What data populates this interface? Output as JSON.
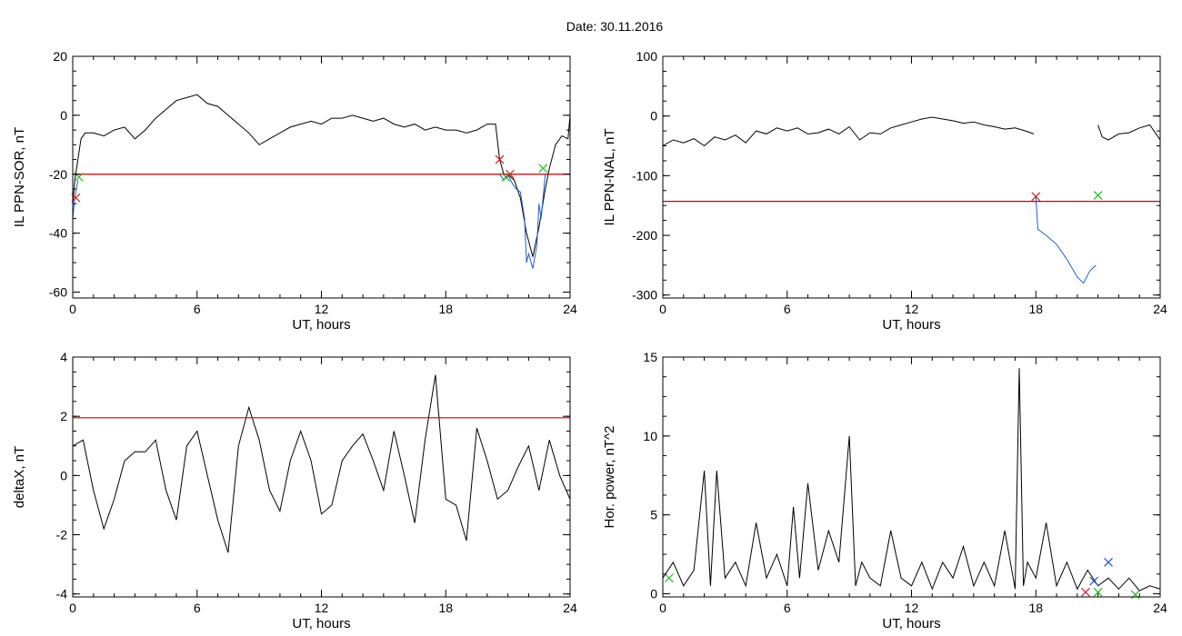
{
  "figure": {
    "title": "Date:  30.11.2016"
  },
  "colors": {
    "trace": "#000000",
    "threshold": "#cc0000",
    "segment": "#1f5fd0",
    "marker_red": "#cc2222",
    "marker_green": "#22bb22",
    "marker_blue": "#2255dd"
  },
  "chart_data": [
    {
      "id": "sor",
      "type": "line",
      "ylabel": "IL PPN-SOR, nT",
      "xlabel": "UT, hours",
      "xlim": [
        0,
        24
      ],
      "ylim": [
        -62,
        20
      ],
      "xticks": [
        0,
        6,
        12,
        18,
        24
      ],
      "yticks": [
        -60,
        -40,
        -20,
        0,
        20
      ],
      "threshold": -20,
      "series": [
        {
          "color": "#000000",
          "x": [
            0,
            0.1,
            0.25,
            0.4,
            0.6,
            1,
            1.5,
            2,
            2.5,
            3,
            3.5,
            4,
            4.5,
            5,
            5.5,
            6,
            6.5,
            7,
            7.5,
            8,
            8.5,
            9,
            9.5,
            10,
            10.5,
            11,
            11.5,
            12,
            12.5,
            13,
            13.5,
            14,
            14.5,
            15,
            15.5,
            16,
            16.5,
            17,
            17.5,
            18,
            18.5,
            19,
            19.5,
            20,
            20.4,
            20.6,
            20.8,
            21,
            21.3,
            21.6,
            21.9,
            22.2,
            22.5,
            22.8,
            23,
            23.3,
            23.6,
            23.9,
            24
          ],
          "y": [
            -30,
            -22,
            -15,
            -8,
            -6,
            -6,
            -7,
            -5,
            -4,
            -8,
            -5,
            -1,
            2,
            5,
            6,
            7,
            4,
            3,
            0,
            -3,
            -6,
            -10,
            -8,
            -6,
            -4,
            -3,
            -2,
            -3,
            -1,
            -1,
            0,
            -1,
            -2,
            -1,
            -3,
            -4,
            -3,
            -5,
            -4,
            -5,
            -5,
            -6,
            -5,
            -3,
            -3,
            -15,
            -20,
            -20,
            -22,
            -28,
            -40,
            -48,
            -38,
            -25,
            -18,
            -10,
            -7,
            -8,
            0
          ]
        },
        {
          "color": "#1f5fd0",
          "x": [
            0,
            0.1,
            0.25
          ],
          "y": [
            -35,
            -28,
            -22
          ]
        },
        {
          "color": "#1f5fd0",
          "x": [
            20.6,
            20.8,
            21,
            21.2,
            21.4,
            21.6,
            21.8,
            21.9,
            22,
            22.2,
            22.4,
            22.5,
            22.6,
            22.8
          ],
          "y": [
            -20,
            -22,
            -20,
            -23,
            -25,
            -26,
            -35,
            -50,
            -47,
            -52,
            -44,
            -30,
            -35,
            -20
          ]
        }
      ],
      "markers": [
        {
          "x": 0.15,
          "y": -28,
          "color": "#cc2222"
        },
        {
          "x": 0.3,
          "y": -21,
          "color": "#22bb22"
        },
        {
          "x": 20.6,
          "y": -15,
          "color": "#cc2222"
        },
        {
          "x": 20.9,
          "y": -21,
          "color": "#22bb22"
        },
        {
          "x": 21.1,
          "y": -20,
          "color": "#cc2222"
        },
        {
          "x": 22.7,
          "y": -18,
          "color": "#22bb22"
        }
      ]
    },
    {
      "id": "nal",
      "type": "line",
      "ylabel": "IL PPN-NAL, nT",
      "xlabel": "UT, hours",
      "xlim": [
        0,
        24
      ],
      "ylim": [
        -305,
        100
      ],
      "xticks": [
        0,
        6,
        12,
        18,
        24
      ],
      "yticks": [
        -300,
        -200,
        -100,
        0,
        100
      ],
      "threshold": -143,
      "series": [
        {
          "color": "#000000",
          "x": [
            0,
            0.5,
            1,
            1.5,
            2,
            2.5,
            3,
            3.5,
            4,
            4.5,
            5,
            5.5,
            6,
            6.5,
            7,
            7.5,
            8,
            8.5,
            9,
            9.5,
            10,
            10.5,
            11,
            11.5,
            12,
            12.5,
            13,
            13.5,
            14,
            14.5,
            15,
            15.5,
            16,
            16.5,
            17,
            17.5,
            17.9
          ],
          "y": [
            -50,
            -40,
            -45,
            -38,
            -50,
            -35,
            -40,
            -32,
            -45,
            -25,
            -30,
            -20,
            -25,
            -20,
            -30,
            -28,
            -22,
            -30,
            -18,
            -40,
            -28,
            -30,
            -20,
            -15,
            -10,
            -5,
            -2,
            -5,
            -8,
            -12,
            -10,
            -15,
            -18,
            -22,
            -20,
            -25,
            -30
          ]
        },
        {
          "color": "#1f5fd0",
          "x": [
            18,
            18.1,
            18.5,
            19,
            19.5,
            20,
            20.3,
            20.6,
            20.9
          ],
          "y": [
            -135,
            -190,
            -200,
            -215,
            -240,
            -270,
            -280,
            -260,
            -250
          ]
        },
        {
          "color": "#000000",
          "x": [
            21,
            21.2,
            21.5,
            22,
            22.5,
            23,
            23.5,
            24
          ],
          "y": [
            -15,
            -35,
            -40,
            -30,
            -28,
            -20,
            -15,
            -40
          ]
        }
      ],
      "markers": [
        {
          "x": 18,
          "y": -135,
          "color": "#cc2222"
        },
        {
          "x": 21,
          "y": -133,
          "color": "#22bb22"
        }
      ]
    },
    {
      "id": "deltax",
      "type": "line",
      "ylabel": "deltaX, nT",
      "xlabel": "UT, hours",
      "xlim": [
        0,
        24
      ],
      "ylim": [
        -4.1,
        4
      ],
      "xticks": [
        0,
        6,
        12,
        18,
        24
      ],
      "yticks": [
        -4,
        -2,
        0,
        2,
        4
      ],
      "threshold": 1.95,
      "series": [
        {
          "color": "#000000",
          "x": [
            0,
            0.5,
            1,
            1.5,
            2,
            2.5,
            3,
            3.5,
            4,
            4.5,
            5,
            5.5,
            6,
            6.5,
            7,
            7.5,
            8,
            8.5,
            9,
            9.5,
            10,
            10.5,
            11,
            11.5,
            12,
            12.5,
            13,
            13.5,
            14,
            14.5,
            15,
            15.5,
            16,
            16.5,
            17,
            17.5,
            18,
            18.5,
            19,
            19.5,
            20,
            20.5,
            21,
            21.5,
            22,
            22.5,
            23,
            23.5,
            24
          ],
          "y": [
            1,
            1.2,
            -0.5,
            -1.8,
            -0.8,
            0.5,
            0.8,
            0.8,
            1.2,
            -0.5,
            -1.5,
            1,
            1.5,
            0,
            -1.5,
            -2.6,
            1,
            2.3,
            1.2,
            -0.5,
            -1.2,
            0.5,
            1.5,
            0.5,
            -1.3,
            -1,
            0.5,
            1,
            1.4,
            0.5,
            -0.5,
            1.5,
            0,
            -1.6,
            1.2,
            3.4,
            -0.8,
            -1,
            -2.2,
            1.6,
            0.5,
            -0.8,
            -0.5,
            0.3,
            1,
            -0.5,
            1.2,
            0,
            -0.8
          ]
        }
      ],
      "markers": []
    },
    {
      "id": "power",
      "type": "line",
      "ylabel": "Hor. power, nT^2",
      "xlabel": "UT, hours",
      "xlim": [
        0,
        24
      ],
      "ylim": [
        -0.2,
        15
      ],
      "xticks": [
        0,
        6,
        12,
        18,
        24
      ],
      "yticks": [
        0,
        5,
        10,
        15
      ],
      "threshold": null,
      "series": [
        {
          "color": "#000000",
          "x": [
            0,
            0.5,
            1,
            1.5,
            2,
            2.3,
            2.6,
            3,
            3.5,
            4,
            4.5,
            5,
            5.5,
            6,
            6.3,
            6.6,
            7,
            7.5,
            8,
            8.5,
            9,
            9.3,
            9.6,
            10,
            10.5,
            11,
            11.5,
            12,
            12.5,
            13,
            13.5,
            14,
            14.5,
            15,
            15.5,
            16,
            16.5,
            17,
            17.2,
            17.4,
            17.6,
            18,
            18.5,
            19,
            19.5,
            20,
            20.5,
            21,
            21.5,
            22,
            22.5,
            23,
            23.5,
            24
          ],
          "y": [
            1,
            2,
            0.5,
            1.5,
            7.8,
            0.5,
            7.8,
            1,
            2,
            0.5,
            4.5,
            1,
            2.5,
            0.5,
            5.5,
            1,
            7,
            1.5,
            4,
            2,
            10,
            0.5,
            2,
            1,
            0.5,
            4,
            1,
            0.5,
            2,
            0.3,
            2,
            1,
            3,
            0.5,
            2,
            0.5,
            4,
            0.3,
            14.3,
            0.5,
            2,
            1,
            4.5,
            0.5,
            2,
            0.3,
            1.5,
            0.5,
            1,
            0.3,
            1,
            0.2,
            0.5,
            0.3
          ]
        }
      ],
      "markers": [
        {
          "x": 0.3,
          "y": 1.0,
          "color": "#22bb22"
        },
        {
          "x": 20.4,
          "y": 0.1,
          "color": "#cc2222"
        },
        {
          "x": 20.8,
          "y": 0.8,
          "color": "#2255dd"
        },
        {
          "x": 21.0,
          "y": 0.1,
          "color": "#22bb22"
        },
        {
          "x": 21.5,
          "y": 2.0,
          "color": "#2255dd"
        },
        {
          "x": 22.8,
          "y": -0.05,
          "color": "#22bb22"
        }
      ]
    }
  ]
}
